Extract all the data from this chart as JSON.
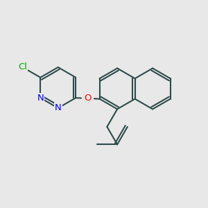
{
  "bg_color": "#e8e8e8",
  "bond_color": "#2d4a4a",
  "bond_width": 1.5,
  "atom_colors": {
    "Cl": "#00aa00",
    "N": "#0000ff",
    "O": "#ff0000"
  },
  "font_size": 9.5,
  "fig_size": [
    3.0,
    3.0
  ],
  "dpi": 100
}
